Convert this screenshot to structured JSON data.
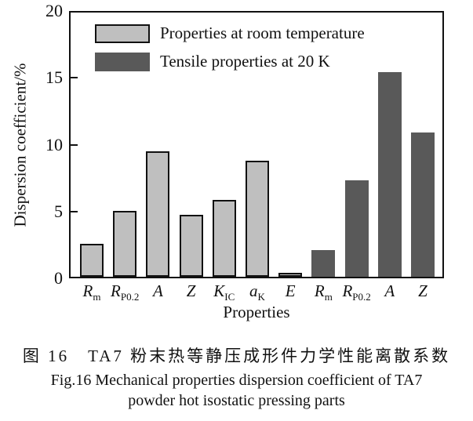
{
  "chart_data": {
    "type": "bar",
    "title": "",
    "xlabel": "Properties",
    "ylabel": "Dispersion coefficient/%",
    "ylim": [
      0,
      20
    ],
    "yticks": [
      0,
      5,
      10,
      15,
      20
    ],
    "grid": false,
    "legend_position": "top-left-inside",
    "series": [
      {
        "name": "Properties at room temperature",
        "fill": "#bfbfbf",
        "border": "#111111"
      },
      {
        "name": "Tensile properties at 20 K",
        "fill": "#595959",
        "border": "#595959"
      }
    ],
    "bars": [
      {
        "label": "R",
        "sub": "m",
        "value": 2.5,
        "series": 0
      },
      {
        "label": "R",
        "sub": "P0.2",
        "value": 5.0,
        "series": 0
      },
      {
        "label": "A",
        "sub": "",
        "value": 9.5,
        "series": 0
      },
      {
        "label": "Z",
        "sub": "",
        "value": 4.7,
        "series": 0
      },
      {
        "label": "K",
        "sub": "IC",
        "value": 5.8,
        "series": 0
      },
      {
        "label": "a",
        "sub": "K",
        "value": 8.8,
        "series": 0
      },
      {
        "label": "E",
        "sub": "",
        "value": 0.3,
        "series": 0
      },
      {
        "label": "R",
        "sub": "m",
        "value": 2.0,
        "series": 1
      },
      {
        "label": "R",
        "sub": "P0.2",
        "value": 7.3,
        "series": 1
      },
      {
        "label": "A",
        "sub": "",
        "value": 15.5,
        "series": 1
      },
      {
        "label": "Z",
        "sub": "",
        "value": 10.9,
        "series": 1
      }
    ]
  },
  "caption": {
    "chinese": "图 16　TA7 粉末热等静压成形件力学性能离散系数",
    "english_line1": "Fig.16 Mechanical properties dispersion coefficient of TA7",
    "english_line2": "powder hot isostatic pressing parts"
  }
}
